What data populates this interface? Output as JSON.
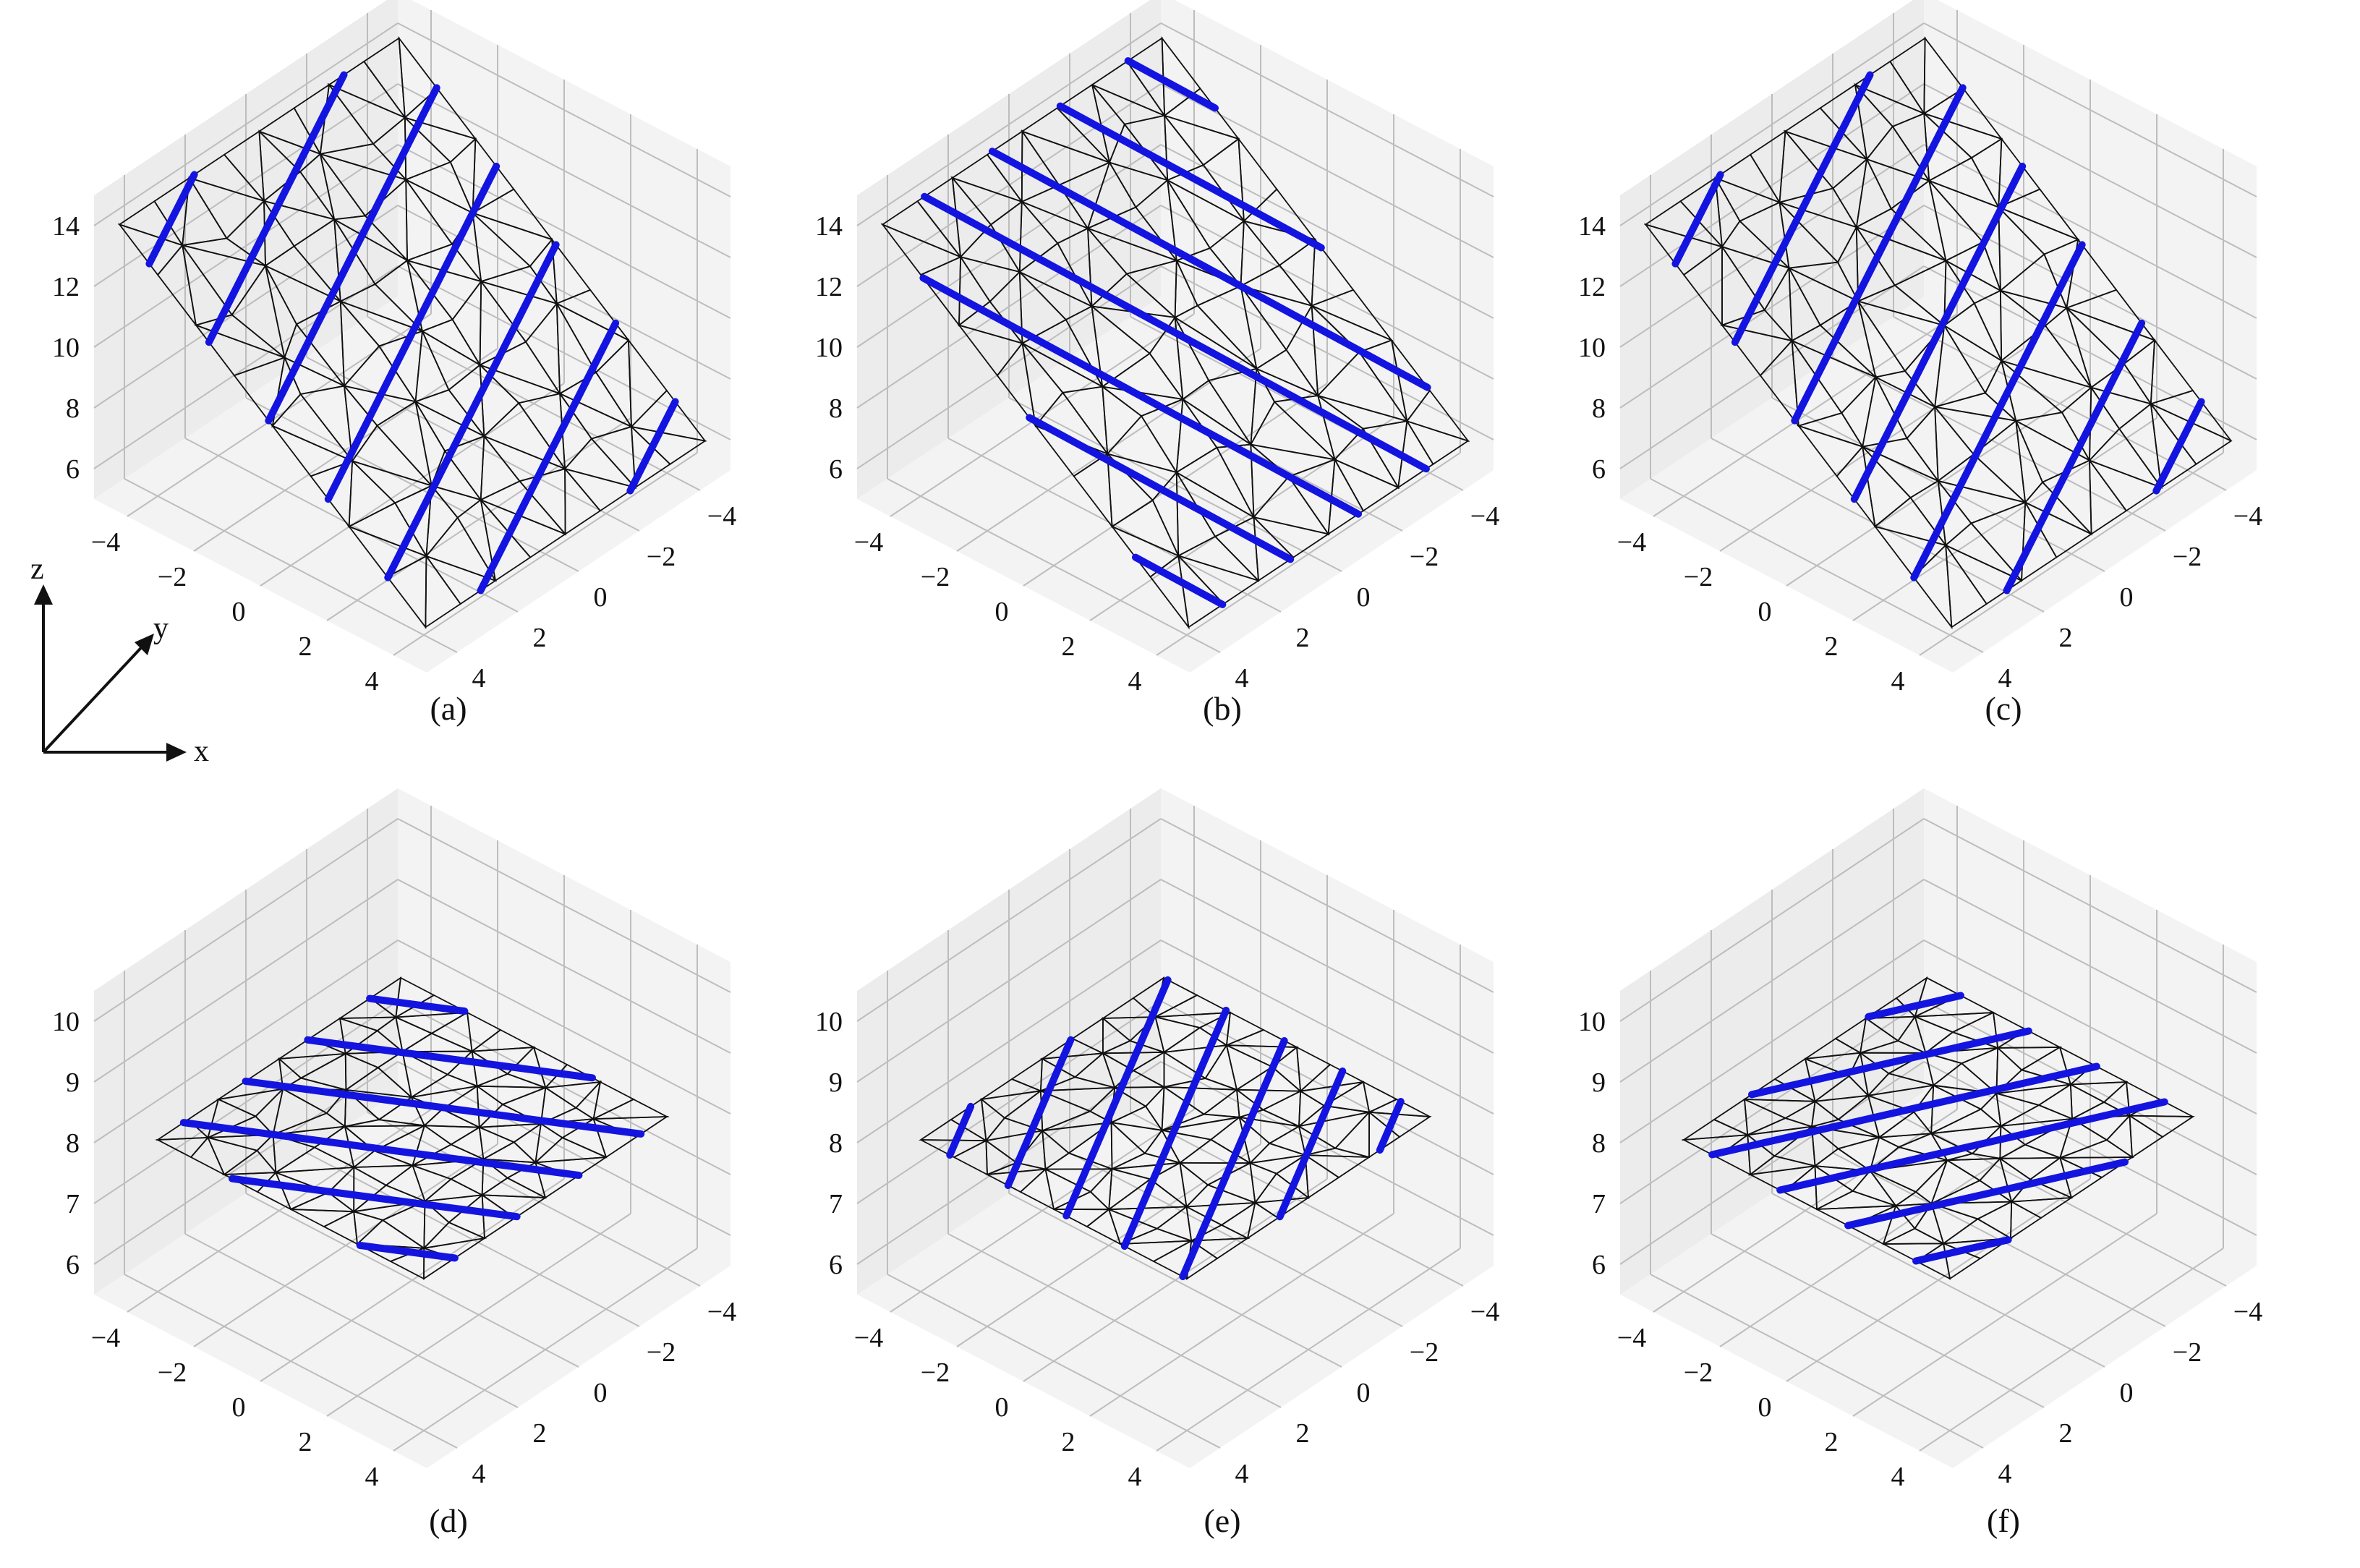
{
  "colors": {
    "pane": "#ececec",
    "pane_side": "#f3f3f3",
    "grid": "#bdbdbd",
    "mesh": "#111111",
    "fiber": "#1414e0",
    "text": "#111111"
  },
  "axes_indicator": {
    "x": "x",
    "y": "y",
    "z": "z"
  },
  "chart_data": [
    {
      "type": "surface-mesh-3d",
      "caption": "(a)",
      "zlim": [
        5,
        15
      ],
      "zticks": [
        "6",
        "8",
        "10",
        "12",
        "14"
      ],
      "xticks": [
        "−4",
        "−2",
        "0",
        "2",
        "4"
      ],
      "yticks": [
        "−4",
        "−2",
        "0",
        "2",
        "4"
      ],
      "xlim": [
        -5,
        5
      ],
      "ylim": [
        -5,
        5
      ],
      "surface": {
        "shape": "tilted-plane",
        "z_range": [
          6,
          14
        ]
      },
      "fiber_lines": 7
    },
    {
      "type": "surface-mesh-3d",
      "caption": "(b)",
      "zlim": [
        5,
        15
      ],
      "zticks": [
        "6",
        "8",
        "10",
        "12",
        "14"
      ],
      "xticks": [
        "−4",
        "−2",
        "0",
        "2",
        "4"
      ],
      "yticks": [
        "−4",
        "−2",
        "0",
        "2",
        "4"
      ],
      "xlim": [
        -5,
        5
      ],
      "ylim": [
        -5,
        5
      ],
      "surface": {
        "shape": "tilted-plane",
        "z_range": [
          6,
          14
        ]
      },
      "fiber_lines": 7
    },
    {
      "type": "surface-mesh-3d",
      "caption": "(c)",
      "zlim": [
        5,
        15
      ],
      "zticks": [
        "6",
        "8",
        "10",
        "12",
        "14"
      ],
      "xticks": [
        "−4",
        "−2",
        "0",
        "2",
        "4"
      ],
      "yticks": [
        "−4",
        "−2",
        "0",
        "2",
        "4"
      ],
      "xlim": [
        -5,
        5
      ],
      "ylim": [
        -5,
        5
      ],
      "surface": {
        "shape": "tilted-plane",
        "z_range": [
          6,
          14
        ]
      },
      "fiber_lines": 7
    },
    {
      "type": "surface-mesh-3d",
      "caption": "(d)",
      "zlim": [
        5.5,
        10.5
      ],
      "zticks": [
        "6",
        "7",
        "8",
        "9",
        "10"
      ],
      "xticks": [
        "−4",
        "−2",
        "0",
        "2",
        "4"
      ],
      "yticks": [
        "−4",
        "−2",
        "0",
        "2",
        "4"
      ],
      "xlim": [
        -5,
        5
      ],
      "ylim": [
        -5,
        5
      ],
      "surface": {
        "shape": "flat-plane",
        "z_range": [
          8,
          8
        ]
      },
      "fiber_lines": 6
    },
    {
      "type": "surface-mesh-3d",
      "caption": "(e)",
      "zlim": [
        5.5,
        10.5
      ],
      "zticks": [
        "6",
        "7",
        "8",
        "9",
        "10"
      ],
      "xticks": [
        "−4",
        "−2",
        "0",
        "2",
        "4"
      ],
      "yticks": [
        "−4",
        "−2",
        "0",
        "2",
        "4"
      ],
      "xlim": [
        -5,
        5
      ],
      "ylim": [
        -5,
        5
      ],
      "surface": {
        "shape": "flat-plane",
        "z_range": [
          8,
          8
        ]
      },
      "fiber_lines": 7
    },
    {
      "type": "surface-mesh-3d",
      "caption": "(f)",
      "zlim": [
        5.5,
        10.5
      ],
      "zticks": [
        "6",
        "7",
        "8",
        "9",
        "10"
      ],
      "xticks": [
        "−4",
        "−2",
        "0",
        "2",
        "4"
      ],
      "yticks": [
        "−4",
        "−2",
        "0",
        "2",
        "4"
      ],
      "xlim": [
        -5,
        5
      ],
      "ylim": [
        -5,
        5
      ],
      "surface": {
        "shape": "flat-plane",
        "z_range": [
          8,
          8
        ]
      },
      "fiber_lines": 6
    }
  ]
}
